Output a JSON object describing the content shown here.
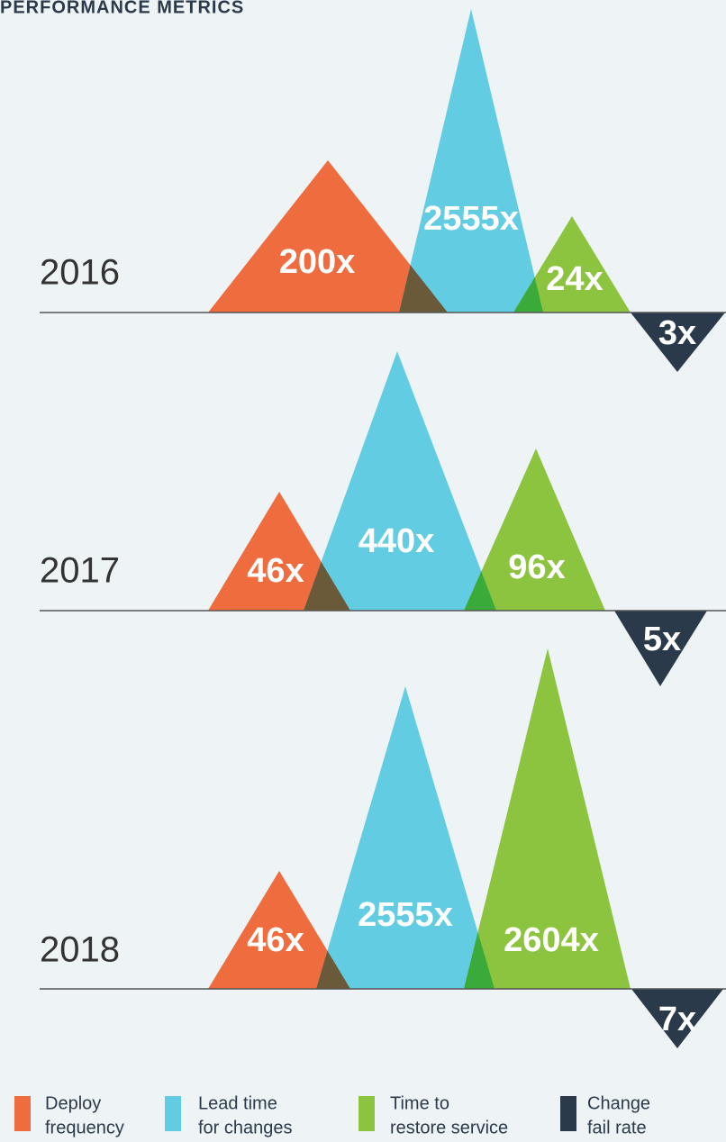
{
  "title": "PERFORMANCE METRICS",
  "rows": [
    {
      "year": "2016",
      "metrics": [
        "200x",
        "2555x",
        "24x",
        "3x"
      ]
    },
    {
      "year": "2017",
      "metrics": [
        "46x",
        "440x",
        "96x",
        "5x"
      ]
    },
    {
      "year": "2018",
      "metrics": [
        "46x",
        "2555x",
        "2604x",
        "7x"
      ]
    }
  ],
  "legend": [
    {
      "lines": [
        "Deploy",
        "frequency"
      ]
    },
    {
      "lines": [
        "Lead time",
        "for changes"
      ]
    },
    {
      "lines": [
        "Time to",
        "restore service"
      ]
    },
    {
      "lines": [
        "Change",
        "fail rate"
      ]
    }
  ]
}
